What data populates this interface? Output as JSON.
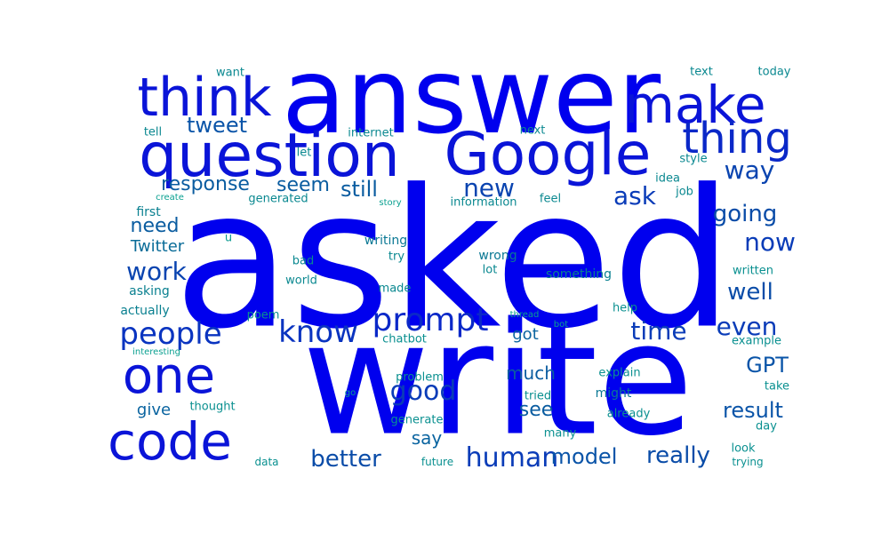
{
  "words": [
    {
      "text": "asked",
      "color": "#0000ee",
      "weight": 100
    },
    {
      "text": "write",
      "color": "#0000ee",
      "weight": 95
    },
    {
      "text": "answer",
      "color": "#0000ee",
      "weight": 85
    },
    {
      "text": "question",
      "color": "#0a14d8",
      "weight": 60
    },
    {
      "text": "Google",
      "color": "#0a14d8",
      "weight": 58
    },
    {
      "text": "think",
      "color": "#0a14d8",
      "weight": 55
    },
    {
      "text": "make",
      "color": "#0a14d8",
      "weight": 52
    },
    {
      "text": "code",
      "color": "#0a14d8",
      "weight": 50
    },
    {
      "text": "one",
      "color": "#0a14d8",
      "weight": 48
    },
    {
      "text": "thing",
      "color": "#0a28c8",
      "weight": 45
    },
    {
      "text": "prompt",
      "color": "#0a28c8",
      "weight": 40
    },
    {
      "text": "people",
      "color": "#0a34c0",
      "weight": 38
    },
    {
      "text": "know",
      "color": "#0a34c0",
      "weight": 37
    },
    {
      "text": "human",
      "color": "#0a3cb8",
      "weight": 34
    },
    {
      "text": "good",
      "color": "#0a3cb8",
      "weight": 34
    },
    {
      "text": "time",
      "color": "#0a3cb8",
      "weight": 33
    },
    {
      "text": "even",
      "color": "#0a3cb8",
      "weight": 33
    },
    {
      "text": "now",
      "color": "#0a3cb8",
      "weight": 33
    },
    {
      "text": "ask",
      "color": "#0a3cb8",
      "weight": 33
    },
    {
      "text": "new",
      "color": "#0a44b0",
      "weight": 32
    },
    {
      "text": "way",
      "color": "#0a44b0",
      "weight": 31
    },
    {
      "text": "work",
      "color": "#0a44b0",
      "weight": 31
    },
    {
      "text": "well",
      "color": "#0a4ca8",
      "weight": 30
    },
    {
      "text": "going",
      "color": "#0a4ca8",
      "weight": 30
    },
    {
      "text": "better",
      "color": "#0a4ca8",
      "weight": 30
    },
    {
      "text": "really",
      "color": "#0a4ca8",
      "weight": 30
    },
    {
      "text": "model",
      "color": "#0a54a8",
      "weight": 29
    },
    {
      "text": "result",
      "color": "#0a54a8",
      "weight": 28
    },
    {
      "text": "GPT",
      "color": "#0a54a8",
      "weight": 28
    },
    {
      "text": "tweet",
      "color": "#0a54a8",
      "weight": 28
    },
    {
      "text": "still",
      "color": "#0a5ca0",
      "weight": 27
    },
    {
      "text": "response",
      "color": "#0a5ca0",
      "weight": 26
    },
    {
      "text": "seem",
      "color": "#0a5ca0",
      "weight": 26
    },
    {
      "text": "need",
      "color": "#0a5ca0",
      "weight": 26
    },
    {
      "text": "see",
      "color": "#0a5ca0",
      "weight": 26
    },
    {
      "text": "much",
      "color": "#0a5ca0",
      "weight": 24
    },
    {
      "text": "say",
      "color": "#0a64a0",
      "weight": 24
    },
    {
      "text": "got",
      "color": "#0a64a0",
      "weight": 23
    },
    {
      "text": "give",
      "color": "#0a64a0",
      "weight": 22
    },
    {
      "text": "Twitter",
      "color": "#0a6c98",
      "weight": 22
    },
    {
      "text": "might",
      "color": "#0a7894",
      "weight": 18
    },
    {
      "text": "writing",
      "color": "#0a7894",
      "weight": 16
    },
    {
      "text": "wrong",
      "color": "#0a7894",
      "weight": 16
    },
    {
      "text": "something",
      "color": "#0a8090",
      "weight": 16
    },
    {
      "text": "asking",
      "color": "#0a8090",
      "weight": 16
    },
    {
      "text": "actually",
      "color": "#0a8090",
      "weight": 16
    },
    {
      "text": "first",
      "color": "#0a8090",
      "weight": 16
    },
    {
      "text": "tell",
      "color": "#0a8890",
      "weight": 15
    },
    {
      "text": "let",
      "color": "#0a8890",
      "weight": 15
    },
    {
      "text": "internet",
      "color": "#0a8890",
      "weight": 15
    },
    {
      "text": "next",
      "color": "#0a8890",
      "weight": 15
    },
    {
      "text": "text",
      "color": "#0a8890",
      "weight": 15
    },
    {
      "text": "today",
      "color": "#0a8890",
      "weight": 15
    },
    {
      "text": "want",
      "color": "#0a8890",
      "weight": 15
    },
    {
      "text": "style",
      "color": "#0a8890",
      "weight": 15
    },
    {
      "text": "idea",
      "color": "#0a8890",
      "weight": 15
    },
    {
      "text": "job",
      "color": "#0a8890",
      "weight": 15
    },
    {
      "text": "feel",
      "color": "#0a8890",
      "weight": 15
    },
    {
      "text": "generated",
      "color": "#0a8890",
      "weight": 15
    },
    {
      "text": "information",
      "color": "#0a8890",
      "weight": 15
    },
    {
      "text": "try",
      "color": "#0a8890",
      "weight": 15
    },
    {
      "text": "bad",
      "color": "#0a8890",
      "weight": 15
    },
    {
      "text": "lot",
      "color": "#0a8890",
      "weight": 15
    },
    {
      "text": "world",
      "color": "#0a8890",
      "weight": 15
    },
    {
      "text": "made",
      "color": "#0a8890",
      "weight": 14
    },
    {
      "text": "written",
      "color": "#0a9090",
      "weight": 14
    },
    {
      "text": "help",
      "color": "#0a9090",
      "weight": 14
    },
    {
      "text": "poem",
      "color": "#0a9090",
      "weight": 14
    },
    {
      "text": "chatbot",
      "color": "#0a9090",
      "weight": 14
    },
    {
      "text": "example",
      "color": "#0a9090",
      "weight": 14
    },
    {
      "text": "explain",
      "color": "#0a9090",
      "weight": 14
    },
    {
      "text": "take",
      "color": "#0a9090",
      "weight": 14
    },
    {
      "text": "problem",
      "color": "#0a9090",
      "weight": 14
    },
    {
      "text": "tried",
      "color": "#0a9090",
      "weight": 14
    },
    {
      "text": "thought",
      "color": "#0a9090",
      "weight": 14
    },
    {
      "text": "already",
      "color": "#0a9090",
      "weight": 14
    },
    {
      "text": "generate",
      "color": "#0a9090",
      "weight": 14
    },
    {
      "text": "day",
      "color": "#0a9090",
      "weight": 14
    },
    {
      "text": "many",
      "color": "#0a9090",
      "weight": 14
    },
    {
      "text": "look",
      "color": "#0a9090",
      "weight": 14
    },
    {
      "text": "data",
      "color": "#0a9090",
      "weight": 13
    },
    {
      "text": "future",
      "color": "#0a9090",
      "weight": 13
    },
    {
      "text": "trying",
      "color": "#0a9090",
      "weight": 13
    },
    {
      "text": "u",
      "color": "#0a9890",
      "weight": 13
    },
    {
      "text": "create",
      "color": "#0aa090",
      "weight": 11
    },
    {
      "text": "story",
      "color": "#0aa090",
      "weight": 11
    },
    {
      "text": "go",
      "color": "#0aa090",
      "weight": 11
    },
    {
      "text": "thread",
      "color": "#0aa090",
      "weight": 11
    },
    {
      "text": "bot",
      "color": "#0aa090",
      "weight": 10
    },
    {
      "text": "interesting",
      "color": "#0aa090",
      "weight": 10
    }
  ]
}
